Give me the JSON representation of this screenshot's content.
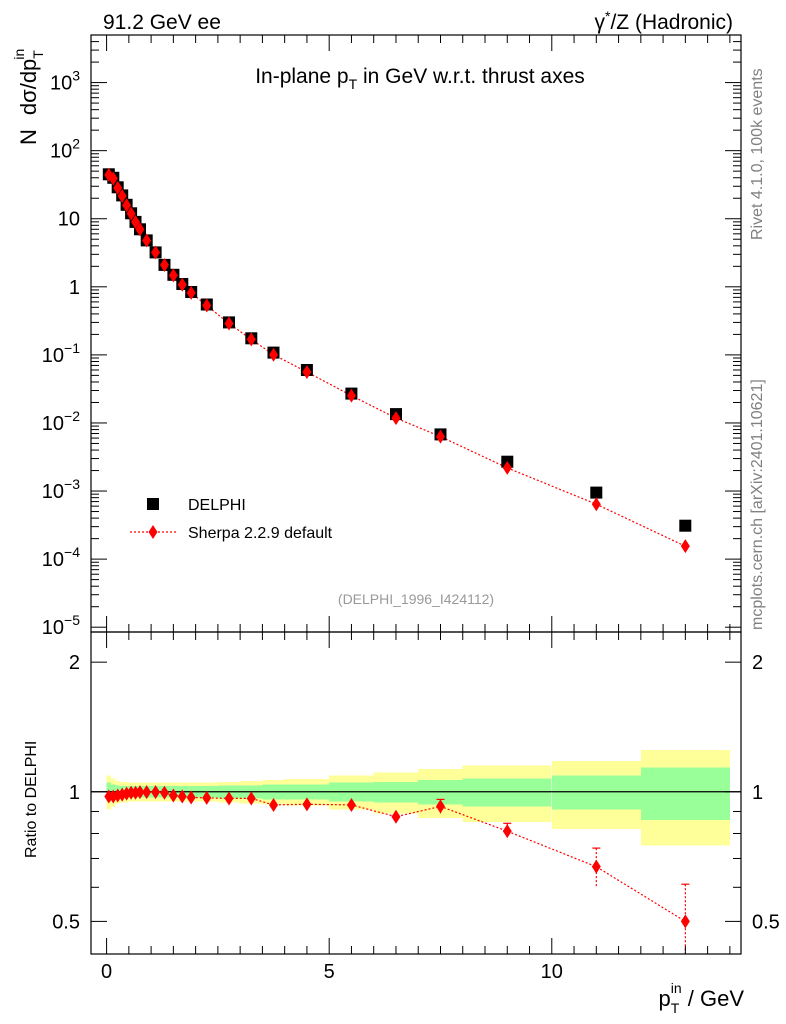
{
  "header": {
    "left": "91.2 GeV ee",
    "right_base": "γ",
    "right_sup": "*",
    "right_rest": "/Z (Hadronic)"
  },
  "side_labels": {
    "rivet": "Rivet 4.1.0,  100k events",
    "mcplots": "mcplots.cern.ch [arXiv:2401.10621]"
  },
  "main_plot": {
    "title_pre": "In-plane p",
    "title_sub": "T",
    "title_post": " in GeV w.r.t. thrust axes",
    "ylabel_n": "N",
    "ylabel_frac": "dσ/dp",
    "ylabel_sub": "T",
    "ylabel_sup": "in",
    "watermark": "(DELPHI_1996_I424112)",
    "yticks": [
      {
        "v": 1e-05,
        "base": "10",
        "exp": "−5"
      },
      {
        "v": 0.0001,
        "base": "10",
        "exp": "−4"
      },
      {
        "v": 0.001,
        "base": "10",
        "exp": "−3"
      },
      {
        "v": 0.01,
        "base": "10",
        "exp": "−2"
      },
      {
        "v": 0.1,
        "base": "10",
        "exp": "−1"
      },
      {
        "v": 1,
        "base": "1",
        "exp": ""
      },
      {
        "v": 10,
        "base": "10",
        "exp": ""
      },
      {
        "v": 100,
        "base": "10",
        "exp": "2"
      },
      {
        "v": 1000,
        "base": "10",
        "exp": "3"
      }
    ]
  },
  "legend": {
    "data_label": "DELPHI",
    "mc_label": "Sherpa 2.2.9 default"
  },
  "ratio_plot": {
    "ylabel": "Ratio to DELPHI",
    "yticks": [
      {
        "v": 0.5,
        "label": "0.5"
      },
      {
        "v": 1,
        "label": "1"
      },
      {
        "v": 2,
        "label": "2"
      }
    ]
  },
  "xaxis": {
    "label_pre": "p",
    "label_sub": "T",
    "label_sup": "in",
    "label_post": " / GeV",
    "ticks": [
      {
        "v": 0,
        "label": "0"
      },
      {
        "v": 5,
        "label": "5"
      },
      {
        "v": 10,
        "label": "10"
      }
    ]
  },
  "chart_data": {
    "type": "scatter",
    "xlim": [
      -0.35,
      14.25
    ],
    "ylim_log": [
      8.5e-06,
      5000
    ],
    "ratio_ylim_log": [
      0.42,
      2.35
    ],
    "x": [
      0.05,
      0.15,
      0.25,
      0.35,
      0.45,
      0.55,
      0.65,
      0.75,
      0.9,
      1.1,
      1.3,
      1.5,
      1.7,
      1.9,
      2.25,
      2.75,
      3.25,
      3.75,
      4.5,
      5.5,
      6.5,
      7.5,
      9.0,
      11.0,
      13.0
    ],
    "bin_edges": [
      0.0,
      0.1,
      0.2,
      0.3,
      0.4,
      0.5,
      0.6,
      0.7,
      0.8,
      1.0,
      1.2,
      1.4,
      1.6,
      1.8,
      2.0,
      2.5,
      3.0,
      3.5,
      4.0,
      5.0,
      6.0,
      7.0,
      8.0,
      10.0,
      12.0,
      14.0
    ],
    "series": [
      {
        "name": "DELPHI",
        "marker": "square",
        "color": "#000000",
        "values": [
          45,
          40,
          29,
          22,
          16,
          12,
          9.0,
          7.0,
          4.8,
          3.2,
          2.1,
          1.5,
          1.1,
          0.84,
          0.55,
          0.3,
          0.175,
          0.108,
          0.06,
          0.027,
          0.0135,
          0.0068,
          0.0027,
          0.00095,
          0.00031
        ]
      },
      {
        "name": "Sherpa 2.2.9 default",
        "marker": "diamond",
        "color": "#ff0000",
        "values": [
          44,
          39,
          28.4,
          21.6,
          15.8,
          11.9,
          8.95,
          6.98,
          4.79,
          3.19,
          2.09,
          1.47,
          1.07,
          0.815,
          0.532,
          0.289,
          0.169,
          0.1006,
          0.0561,
          0.0252,
          0.0118,
          0.0063,
          0.00219,
          0.00064,
          0.000155
        ]
      }
    ],
    "ratio_values": [
      0.975,
      0.975,
      0.98,
      0.985,
      0.99,
      0.995,
      0.995,
      0.998,
      0.998,
      0.998,
      0.995,
      0.98,
      0.975,
      0.97,
      0.968,
      0.965,
      0.965,
      0.932,
      0.935,
      0.932,
      0.875,
      0.925,
      0.81,
      0.67,
      0.5
    ],
    "ratio_errors": [
      0.01,
      0.01,
      0.01,
      0.01,
      0.01,
      0.01,
      0.01,
      0.01,
      0.01,
      0.01,
      0.01,
      0.01,
      0.01,
      0.01,
      0.01,
      0.012,
      0.015,
      0.018,
      0.015,
      0.018,
      0.02,
      0.035,
      0.035,
      0.07,
      0.11
    ],
    "band_green": [
      0.05,
      0.04,
      0.035,
      0.03,
      0.03,
      0.03,
      0.03,
      0.03,
      0.03,
      0.03,
      0.03,
      0.03,
      0.03,
      0.03,
      0.03,
      0.035,
      0.035,
      0.04,
      0.04,
      0.05,
      0.055,
      0.065,
      0.075,
      0.09,
      0.14
    ],
    "band_yellow": [
      0.09,
      0.075,
      0.06,
      0.055,
      0.055,
      0.05,
      0.05,
      0.05,
      0.05,
      0.05,
      0.05,
      0.05,
      0.05,
      0.05,
      0.05,
      0.055,
      0.06,
      0.065,
      0.07,
      0.09,
      0.11,
      0.13,
      0.15,
      0.18,
      0.25
    ],
    "band_colors": {
      "green": "#99ff99",
      "yellow": "#ffff99"
    }
  }
}
